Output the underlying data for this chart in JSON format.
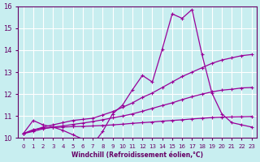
{
  "xlabel": "Windchill (Refroidissement éolien,°C)",
  "ylabel": "",
  "bg_color": "#c8eef0",
  "grid_color": "#ffffff",
  "line_color": "#990099",
  "xlim": [
    -0.5,
    23.5
  ],
  "ylim": [
    10.0,
    16.0
  ],
  "xticks": [
    0,
    1,
    2,
    3,
    4,
    5,
    6,
    7,
    8,
    9,
    10,
    11,
    12,
    13,
    14,
    15,
    16,
    17,
    18,
    19,
    20,
    21,
    22,
    23
  ],
  "yticks": [
    10,
    11,
    12,
    13,
    14,
    15,
    16
  ],
  "series": [
    {
      "x": [
        0,
        1,
        2,
        3,
        4,
        5,
        6,
        7,
        8,
        9,
        10,
        11,
        12,
        13,
        14,
        15,
        16,
        17,
        18,
        19,
        20,
        21,
        22,
        23
      ],
      "y": [
        10.2,
        10.8,
        10.6,
        10.5,
        10.35,
        10.15,
        9.95,
        9.7,
        10.3,
        11.1,
        11.5,
        12.2,
        12.85,
        12.55,
        14.05,
        15.65,
        15.45,
        15.85,
        13.8,
        12.05,
        11.1,
        10.7,
        10.6,
        10.5
      ]
    },
    {
      "x": [
        0,
        1,
        2,
        3,
        4,
        5,
        6,
        7,
        8,
        9,
        10,
        11,
        12,
        13,
        14,
        15,
        16,
        17,
        18,
        19,
        20,
        21,
        22,
        23
      ],
      "y": [
        10.2,
        10.35,
        10.5,
        10.6,
        10.7,
        10.8,
        10.85,
        10.9,
        11.05,
        11.2,
        11.4,
        11.6,
        11.85,
        12.05,
        12.3,
        12.55,
        12.8,
        13.0,
        13.2,
        13.4,
        13.55,
        13.65,
        13.75,
        13.8
      ]
    },
    {
      "x": [
        0,
        1,
        2,
        3,
        4,
        5,
        6,
        7,
        8,
        9,
        10,
        11,
        12,
        13,
        14,
        15,
        16,
        17,
        18,
        19,
        20,
        21,
        22,
        23
      ],
      "y": [
        10.2,
        10.3,
        10.42,
        10.5,
        10.55,
        10.62,
        10.68,
        10.75,
        10.83,
        10.92,
        11.0,
        11.1,
        11.22,
        11.35,
        11.48,
        11.6,
        11.75,
        11.88,
        12.0,
        12.1,
        12.18,
        12.22,
        12.28,
        12.3
      ]
    },
    {
      "x": [
        0,
        1,
        2,
        3,
        4,
        5,
        6,
        7,
        8,
        9,
        10,
        11,
        12,
        13,
        14,
        15,
        16,
        17,
        18,
        19,
        20,
        21,
        22,
        23
      ],
      "y": [
        10.2,
        10.38,
        10.45,
        10.48,
        10.5,
        10.52,
        10.53,
        10.55,
        10.57,
        10.6,
        10.63,
        10.67,
        10.7,
        10.73,
        10.77,
        10.8,
        10.83,
        10.87,
        10.9,
        10.93,
        10.95,
        10.96,
        10.97,
        10.98
      ]
    }
  ]
}
